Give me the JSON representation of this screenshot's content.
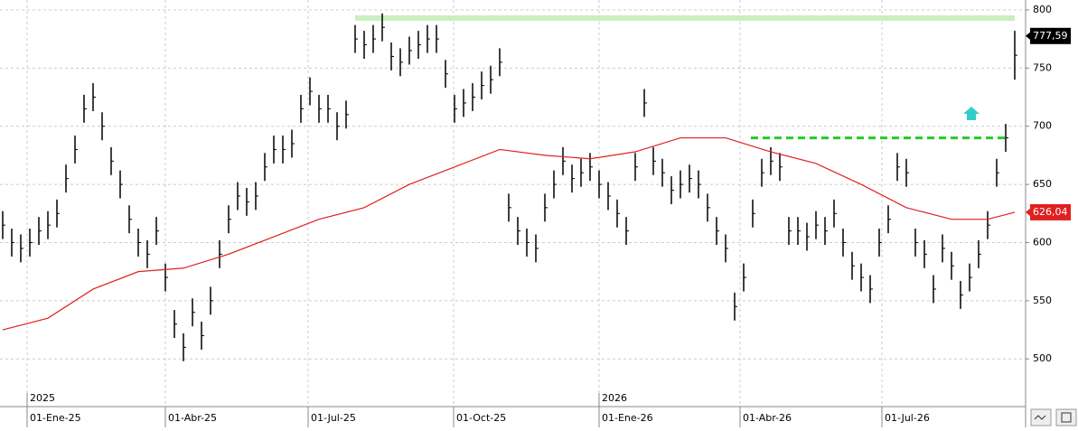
{
  "chart_data": {
    "type": "ohlc",
    "series": [
      {
        "color": "#000000",
        "x": [
          0,
          1,
          2,
          3,
          4,
          5,
          6,
          7,
          8,
          9,
          10,
          11,
          12,
          13,
          14,
          15,
          16,
          17,
          18,
          19,
          20,
          21,
          22,
          23,
          24,
          25,
          26,
          27,
          28,
          29,
          30,
          31,
          32,
          33,
          34,
          35,
          36,
          37,
          38,
          39,
          40,
          41,
          42,
          43,
          44,
          45,
          46,
          47,
          48,
          49,
          50,
          51,
          52,
          53,
          54,
          55,
          56,
          57,
          58,
          59,
          60,
          61,
          62,
          63,
          64,
          65,
          66,
          67,
          68,
          69,
          70,
          71,
          72,
          73,
          74,
          75,
          76,
          77,
          78,
          79,
          80,
          81,
          82,
          83,
          84,
          85,
          86,
          87,
          88,
          89,
          90,
          91,
          92,
          93,
          94,
          95,
          96,
          97,
          98,
          99,
          100,
          101,
          102,
          103,
          104,
          105,
          106,
          107,
          108,
          109,
          110,
          111,
          112
        ],
        "high": [
          627,
          612,
          607,
          612,
          622,
          627,
          637,
          667,
          692,
          727,
          737,
          712,
          682,
          662,
          632,
          612,
          602,
          622,
          582,
          542,
          522,
          552,
          532,
          562,
          602,
          632,
          652,
          647,
          652,
          677,
          692,
          692,
          697,
          727,
          742,
          727,
          727,
          712,
          722,
          787,
          782,
          787,
          797,
          772,
          767,
          777,
          782,
          787,
          787,
          757,
          727,
          732,
          737,
          747,
          752,
          767,
          642,
          622,
          612,
          607,
          642,
          662,
          682,
          667,
          672,
          677,
          662,
          652,
          637,
          622,
          677,
          732,
          682,
          672,
          657,
          662,
          667,
          662,
          642,
          622,
          607,
          557,
          582,
          637,
          672,
          682,
          677,
          622,
          622,
          617,
          627,
          622,
          637,
          612,
          592,
          582,
          572,
          612,
          632,
          677,
          672,
          612,
          602,
          572,
          607,
          592,
          567,
          582,
          602,
          627,
          672,
          702,
          782
        ],
        "low": [
          603,
          588,
          583,
          588,
          598,
          603,
          613,
          643,
          668,
          703,
          713,
          688,
          658,
          638,
          608,
          588,
          578,
          598,
          558,
          518,
          498,
          528,
          508,
          538,
          578,
          608,
          628,
          623,
          628,
          653,
          668,
          668,
          673,
          703,
          718,
          703,
          703,
          688,
          698,
          763,
          758,
          763,
          773,
          748,
          743,
          753,
          758,
          763,
          763,
          733,
          703,
          708,
          713,
          723,
          728,
          743,
          618,
          598,
          588,
          583,
          618,
          638,
          658,
          643,
          648,
          653,
          638,
          628,
          613,
          598,
          653,
          708,
          658,
          648,
          633,
          638,
          643,
          638,
          618,
          598,
          583,
          533,
          558,
          613,
          648,
          658,
          653,
          598,
          598,
          593,
          603,
          598,
          613,
          588,
          568,
          558,
          548,
          588,
          608,
          653,
          648,
          588,
          578,
          548,
          583,
          568,
          543,
          558,
          578,
          603,
          648,
          678,
          740
        ]
      },
      {
        "color": "#e02020",
        "x": [
          0,
          5,
          10,
          15,
          20,
          25,
          30,
          35,
          40,
          45,
          50,
          55,
          60,
          65,
          70,
          75,
          80,
          85,
          90,
          95,
          100,
          105,
          109,
          112
        ],
        "values": [
          525,
          535,
          560,
          575,
          578,
          590,
          605,
          620,
          630,
          650,
          665,
          680,
          675,
          672,
          678,
          690,
          690,
          678,
          668,
          650,
          630,
          620,
          620,
          626
        ]
      }
    ],
    "xlim": [
      -0.3,
      113.2
    ],
    "xticks": [
      {
        "value": 2.7,
        "label": "01-Ene-25"
      },
      {
        "value": 18,
        "label": "01-Abr-25"
      },
      {
        "value": 33.8,
        "label": "01-Jul-25"
      },
      {
        "value": 49.9,
        "label": "01-Oct-25"
      },
      {
        "value": 66,
        "label": "01-Ene-26"
      },
      {
        "value": 81.6,
        "label": "01-Abr-26"
      },
      {
        "value": 97.3,
        "label": "01-Jul-26"
      }
    ],
    "year_labels": [
      {
        "value": 2.7,
        "label": "2025"
      },
      {
        "value": 66,
        "label": "2026"
      }
    ],
    "ylim": [
      459,
      808.5
    ],
    "yticks": [
      500,
      550,
      600,
      650,
      700,
      750,
      800
    ],
    "grid": true,
    "price_tags": [
      {
        "value": 777.59,
        "label": "777,59",
        "color": "#000000"
      },
      {
        "value": 626.04,
        "label": "626,04",
        "color": "#e02020"
      }
    ],
    "resistance": {
      "value": 793,
      "x": [
        39,
        112
      ],
      "color": "#c8f0c0"
    },
    "level": {
      "value": 690,
      "x": [
        82.8,
        111
      ],
      "color": "#22cc22"
    }
  }
}
